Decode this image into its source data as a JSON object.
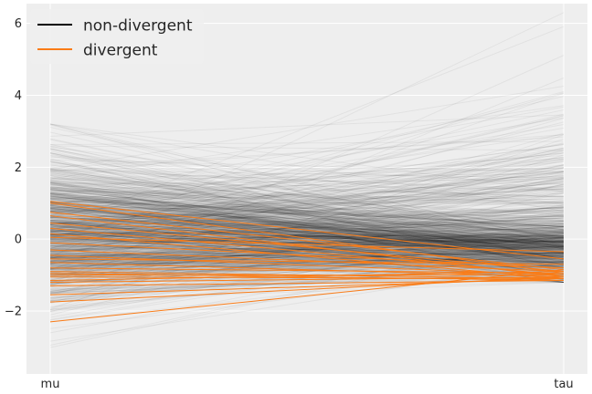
{
  "chart_data": {
    "type": "line",
    "plot_kind": "parallel-coordinates",
    "categories": [
      "mu",
      "tau"
    ],
    "ylim": [
      -3.75,
      6.55
    ],
    "yticks": [
      -2,
      0,
      2,
      4,
      6
    ],
    "grid": true,
    "legend": {
      "placement": "top-left",
      "entries": [
        {
          "label": "non-divergent",
          "color": "#000000"
        },
        {
          "label": "divergent",
          "color": "#fa7c17"
        }
      ]
    },
    "background_color": "#eeeeee",
    "non_divergent_line_alpha": 0.05,
    "non_divergent_draw_count": 950,
    "non_divergent_distribution": {
      "mu": {
        "mean": 0.2,
        "sd": 1.05,
        "min": -3.3,
        "max": 3.2
      },
      "tau": {
        "core_mean": -0.4,
        "core_sd": 0.45,
        "tail_max": 6.3,
        "min": -1.2
      }
    },
    "series": [
      {
        "name": "divergent",
        "color": "#fa7c17",
        "values": [
          [
            1.05,
            -0.55
          ],
          [
            1.0,
            -0.95
          ],
          [
            0.75,
            -0.85
          ],
          [
            0.65,
            -1.05
          ],
          [
            0.45,
            -0.9
          ],
          [
            0.3,
            -1.0
          ],
          [
            0.15,
            -1.1
          ],
          [
            0.05,
            -0.35
          ],
          [
            -0.1,
            -0.8
          ],
          [
            -0.3,
            -0.9
          ],
          [
            -0.45,
            -1.0
          ],
          [
            -0.55,
            -0.7
          ],
          [
            -0.65,
            -1.05
          ],
          [
            -0.8,
            -0.95
          ],
          [
            -0.9,
            -1.1
          ],
          [
            -0.95,
            -1.15
          ],
          [
            -1.0,
            -1.0
          ],
          [
            -1.05,
            -1.1
          ],
          [
            -1.15,
            -0.9
          ],
          [
            -1.2,
            -1.05
          ],
          [
            -1.3,
            -1.15
          ],
          [
            -1.55,
            -1.1
          ],
          [
            -1.75,
            -1.05
          ],
          [
            -2.3,
            -0.85
          ]
        ]
      }
    ]
  }
}
